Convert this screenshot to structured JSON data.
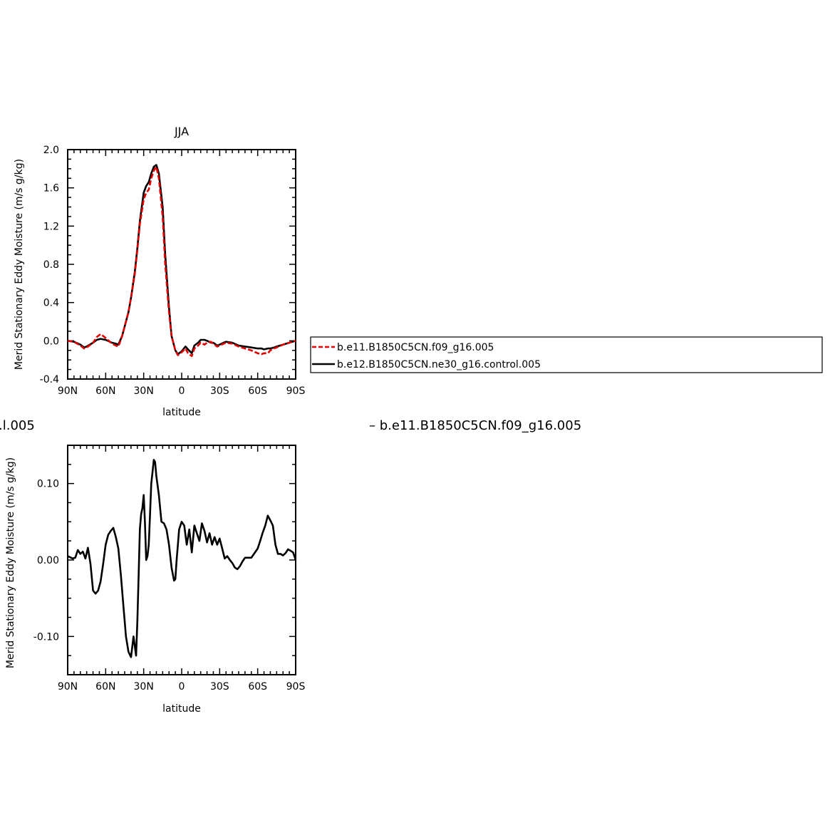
{
  "colors": {
    "case": "#e00000",
    "control": "#000000",
    "diff": "#000000"
  },
  "header": {
    "left_fragment": ".l.005",
    "right_label": "– b.e11.B1850C5CN.f09_g16.005"
  },
  "chart_data": [
    {
      "type": "line",
      "title": "JJA",
      "xlabel": "latitude",
      "ylabel": "Merid Stationary Eddy Moisture (m/s g/kg)",
      "xlim": [
        90,
        -90
      ],
      "ylim": [
        -0.4,
        2.0
      ],
      "xticks": [
        90,
        60,
        30,
        0,
        -30,
        -60,
        -90
      ],
      "xtick_labels": [
        "90N",
        "60N",
        "30N",
        "0",
        "30S",
        "60S",
        "90S"
      ],
      "yticks": [
        -0.4,
        0.0,
        0.4,
        0.8,
        1.2,
        1.6,
        2.0
      ],
      "ytick_labels": [
        "-0.4",
        "0.0",
        "0.4",
        "0.8",
        "1.2",
        "1.6",
        "2.0"
      ],
      "legend": "right",
      "x": [
        90,
        85,
        80,
        77,
        75,
        70,
        67,
        64,
        60,
        55,
        52,
        50,
        47,
        45,
        42,
        40,
        37,
        35,
        33,
        30,
        28,
        26,
        24,
        22,
        20,
        18,
        15,
        13,
        10,
        8,
        5,
        3,
        0,
        -3,
        -5,
        -8,
        -10,
        -13,
        -15,
        -18,
        -20,
        -23,
        -25,
        -28,
        -30,
        -33,
        -35,
        -40,
        -45,
        -50,
        -55,
        -60,
        -63,
        -65,
        -68,
        -70,
        -73,
        -75,
        -80,
        -85,
        -90
      ],
      "series": [
        {
          "name": "b.e11.B1850C5CN.f09_g16.005",
          "color": "#e00000",
          "dash": true,
          "values": [
            0.0,
            -0.01,
            -0.05,
            -0.08,
            -0.07,
            -0.02,
            0.04,
            0.07,
            0.03,
            -0.03,
            -0.05,
            -0.06,
            0.05,
            0.15,
            0.3,
            0.45,
            0.7,
            0.95,
            1.22,
            1.48,
            1.55,
            1.58,
            1.7,
            1.78,
            1.82,
            1.7,
            1.3,
            0.8,
            0.3,
            0.05,
            -0.1,
            -0.15,
            -0.12,
            -0.08,
            -0.13,
            -0.16,
            -0.08,
            -0.05,
            -0.02,
            -0.04,
            -0.02,
            -0.01,
            -0.03,
            -0.06,
            -0.05,
            -0.03,
            -0.02,
            -0.03,
            -0.06,
            -0.08,
            -0.1,
            -0.13,
            -0.14,
            -0.13,
            -0.13,
            -0.1,
            -0.08,
            -0.07,
            -0.04,
            -0.02,
            0.0
          ]
        },
        {
          "name": "b.e12.B1850C5CN.ne30_g16.control.005",
          "color": "#000000",
          "dash": false,
          "values": [
            0.0,
            -0.01,
            -0.04,
            -0.07,
            -0.06,
            -0.02,
            0.01,
            0.02,
            0.01,
            -0.02,
            -0.03,
            -0.04,
            0.05,
            0.15,
            0.3,
            0.45,
            0.72,
            0.97,
            1.25,
            1.55,
            1.62,
            1.66,
            1.75,
            1.82,
            1.84,
            1.75,
            1.4,
            0.9,
            0.35,
            0.05,
            -0.1,
            -0.14,
            -0.11,
            -0.06,
            -0.09,
            -0.13,
            -0.05,
            -0.02,
            0.01,
            0.01,
            0.0,
            -0.02,
            -0.02,
            -0.05,
            -0.04,
            -0.02,
            -0.01,
            -0.02,
            -0.05,
            -0.06,
            -0.07,
            -0.08,
            -0.08,
            -0.09,
            -0.08,
            -0.08,
            -0.07,
            -0.06,
            -0.04,
            -0.02,
            0.0
          ]
        }
      ]
    },
    {
      "type": "line",
      "title": "",
      "xlabel": "latitude",
      "ylabel": "Merid Stationary Eddy Moisture (m/s g/kg)",
      "xlim": [
        90,
        -90
      ],
      "ylim": [
        -0.15,
        0.15
      ],
      "xticks": [
        90,
        60,
        30,
        0,
        -30,
        -60,
        -90
      ],
      "xtick_labels": [
        "90N",
        "60N",
        "30N",
        "0",
        "30S",
        "60S",
        "90S"
      ],
      "yticks": [
        -0.1,
        0.0,
        0.1
      ],
      "ytick_labels": [
        "-0.10",
        "0.00",
        "0.10"
      ],
      "x": [
        90,
        86,
        84,
        82,
        80,
        78,
        76,
        74,
        72,
        70,
        68,
        66,
        64,
        62,
        60,
        58,
        56,
        54,
        52,
        50,
        48,
        46,
        44,
        42,
        40,
        38,
        36,
        35,
        34,
        33,
        32,
        31,
        30,
        29,
        28,
        27,
        26,
        25,
        24,
        23,
        22,
        21,
        20,
        18,
        16,
        14,
        12,
        10,
        8,
        6,
        5,
        4,
        3,
        2,
        0,
        -2,
        -4,
        -6,
        -8,
        -10,
        -12,
        -14,
        -16,
        -18,
        -20,
        -22,
        -24,
        -26,
        -28,
        -30,
        -32,
        -34,
        -36,
        -38,
        -40,
        -42,
        -44,
        -46,
        -48,
        -50,
        -55,
        -60,
        -62,
        -64,
        -66,
        -68,
        -70,
        -72,
        -74,
        -76,
        -78,
        -80,
        -82,
        -84,
        -86,
        -88,
        -90
      ],
      "series": [
        {
          "name": "",
          "color": "#000000",
          "dash": false,
          "values": [
            0.005,
            0.002,
            0.003,
            0.013,
            0.008,
            0.011,
            0.002,
            0.016,
            -0.005,
            -0.04,
            -0.044,
            -0.04,
            -0.028,
            -0.005,
            0.02,
            0.033,
            0.038,
            0.042,
            0.03,
            0.015,
            -0.02,
            -0.06,
            -0.1,
            -0.12,
            -0.127,
            -0.1,
            -0.125,
            -0.08,
            -0.02,
            0.04,
            0.06,
            0.068,
            0.085,
            0.05,
            0.0,
            0.005,
            0.02,
            0.06,
            0.1,
            0.115,
            0.131,
            0.128,
            0.11,
            0.085,
            0.05,
            0.048,
            0.04,
            0.02,
            -0.01,
            -0.027,
            -0.025,
            0.0,
            0.02,
            0.04,
            0.05,
            0.045,
            0.02,
            0.04,
            0.01,
            0.045,
            0.035,
            0.025,
            0.048,
            0.038,
            0.023,
            0.035,
            0.02,
            0.03,
            0.02,
            0.028,
            0.015,
            0.002,
            0.005,
            0.0,
            -0.004,
            -0.01,
            -0.012,
            -0.008,
            -0.002,
            0.003,
            0.003,
            0.015,
            0.025,
            0.036,
            0.045,
            0.058,
            0.052,
            0.045,
            0.02,
            0.008,
            0.008,
            0.006,
            0.009,
            0.014,
            0.012,
            0.01,
            0.0
          ]
        }
      ]
    }
  ],
  "legend": {
    "items": [
      {
        "label": "b.e11.B1850C5CN.f09_g16.005"
      },
      {
        "label": "b.e12.B1850C5CN.ne30_g16.control.005"
      }
    ]
  }
}
